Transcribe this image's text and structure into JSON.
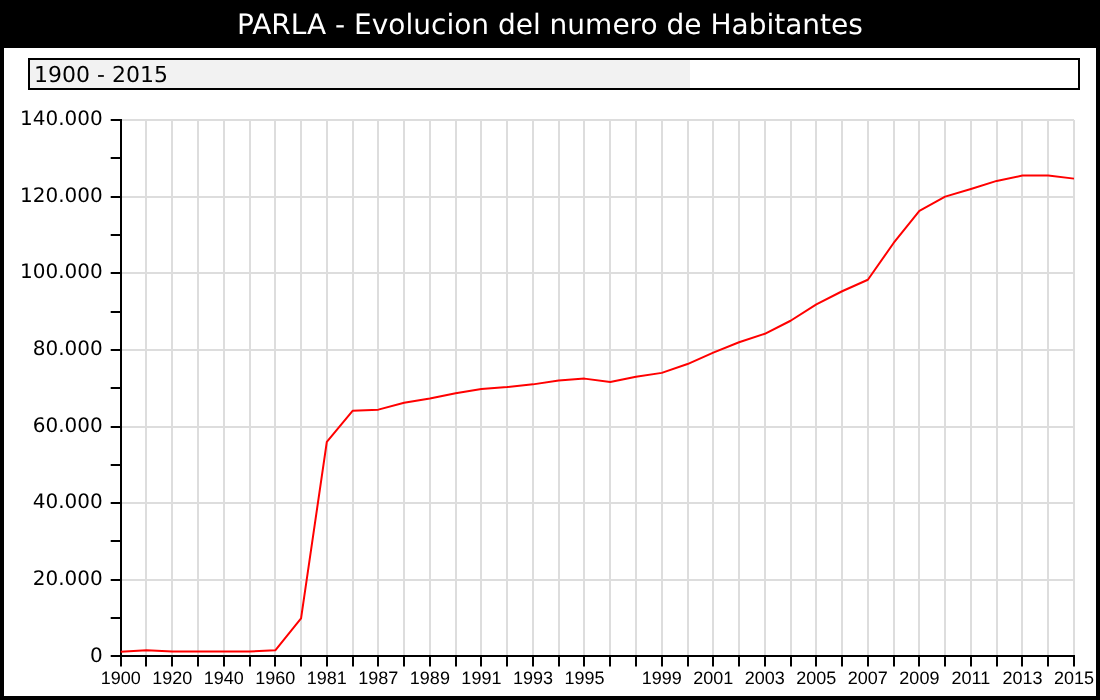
{
  "chart_data": {
    "type": "line",
    "title": "PARLA - Evolucion del numero de Habitantes",
    "subtitle": "1900 - 2015",
    "categories": [
      "1900",
      null,
      "1920",
      null,
      "1940",
      null,
      "1960",
      null,
      "1981",
      null,
      "1987",
      null,
      "1989",
      null,
      "1991",
      null,
      "1993",
      null,
      "1995",
      null,
      null,
      "1999",
      null,
      "2001",
      null,
      "2003",
      null,
      "2005",
      null,
      "2007",
      null,
      "2009",
      null,
      "2011",
      null,
      "2013",
      null,
      "2015"
    ],
    "series": [
      {
        "color": "#ff0000",
        "values": [
          1200,
          1600,
          1300,
          1300,
          1300,
          1300,
          1600,
          9900,
          56000,
          64100,
          64400,
          66200,
          67300,
          68700,
          69800,
          70300,
          71000,
          72000,
          72500,
          71600,
          73000,
          74000,
          76300,
          79300,
          82000,
          84200,
          87600,
          91900,
          95300,
          98300,
          107900,
          116300,
          120000,
          122000,
          124100,
          125500,
          125500,
          124700
        ]
      }
    ],
    "ylim": [
      0,
      140000
    ],
    "yticks": [
      {
        "value": 0,
        "label": "0"
      },
      {
        "value": 10000,
        "label": null
      },
      {
        "value": 20000,
        "label": "20.000"
      },
      {
        "value": 30000,
        "label": null
      },
      {
        "value": 40000,
        "label": "40.000"
      },
      {
        "value": 50000,
        "label": null
      },
      {
        "value": 60000,
        "label": "60.000"
      },
      {
        "value": 70000,
        "label": null
      },
      {
        "value": 80000,
        "label": "80.000"
      },
      {
        "value": 90000,
        "label": null
      },
      {
        "value": 100000,
        "label": "100.000"
      },
      {
        "value": 110000,
        "label": null
      },
      {
        "value": 120000,
        "label": "120.000"
      },
      {
        "value": 130000,
        "label": null
      },
      {
        "value": 140000,
        "label": "140.000"
      }
    ],
    "grid": true,
    "legend": false,
    "marker": "none",
    "line_style": "solid"
  }
}
